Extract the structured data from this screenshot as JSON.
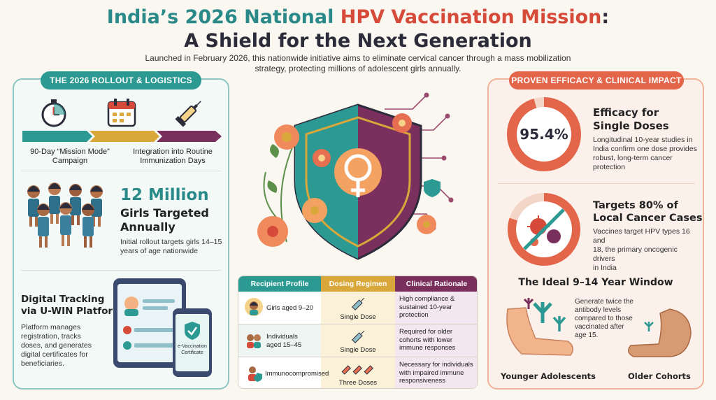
{
  "header": {
    "title_part1": "India’s 2026 National ",
    "title_part2": "HPV Vaccination Mission",
    "title_part3": ":",
    "title_line2": "A Shield for the Next Generation",
    "subtitle": "Launched in February 2026, this nationwide initiative aims to eliminate cervical cancer through a mass mobilization strategy, protecting millions of adolescent girls annually."
  },
  "left_panel": {
    "pill": "THE 2026 ROLLOUT & LOGISTICS",
    "icons": [
      "stopwatch-icon",
      "calendar-icon",
      "syringe-icon"
    ],
    "captions": {
      "c1_line1": "90-Day “Mission Mode”",
      "c1_line2": "Campaign",
      "c2_line1": "Integration into Routine",
      "c2_line2": "Immunization Days"
    },
    "girls": {
      "number": "12 Million",
      "heading_line1": "Girls Targeted",
      "heading_line2": "Annually",
      "body_line1": "Initial rollout targets girls 14–15",
      "body_line2": "years of age nationwide"
    },
    "tracking": {
      "heading_line1": "Digital Tracking",
      "heading_line2": "via U-WIN Platform",
      "body_line1": "Platform manages",
      "body_line2": "registration, tracks",
      "body_line3": "doses, and generates",
      "body_line4": "digital certificates for",
      "body_line5": "beneficiaries.",
      "phone_line1": "e-Vaccination",
      "phone_line2": "Certificate"
    }
  },
  "table": {
    "headers": [
      "Recipient Profile",
      "Dosing Regimen",
      "Clinical Rationale"
    ],
    "rows": [
      {
        "profile_l1": "Girls aged 9–20",
        "profile_l2": "",
        "dose": "Single Dose",
        "rat_l1": "High compliance &",
        "rat_l2": "sustained 10-year",
        "rat_l3": "protection"
      },
      {
        "profile_l1": "Individuals",
        "profile_l2": "aged 15–45",
        "dose": "Single Dose",
        "rat_l1": "Required for older",
        "rat_l2": "cohorts with lower",
        "rat_l3": "immune responses"
      },
      {
        "profile_l1": "Immunocompromised",
        "profile_l2": "",
        "dose": "Three Doses",
        "rat_l1": "Necessary for individuals",
        "rat_l2": "with impaired immune",
        "rat_l3": "responsiveness"
      }
    ]
  },
  "right_panel": {
    "pill": "PROVEN EFFICACY & CLINICAL IMPACT",
    "efficacy": {
      "value": "95.4%",
      "gauge_fraction": 0.954,
      "heading_line1": "Efficacy for",
      "heading_line2": "Single Doses",
      "body_line1": "Longitudinal 10-year studies in",
      "body_line2": "India confirm one dose provides",
      "body_line3": "robust, long-term cancer",
      "body_line4": "protection"
    },
    "cases": {
      "heading_line1": "Targets 80% of",
      "heading_line2": "Local Cancer Cases",
      "gauge_fraction": 0.8,
      "body_line1": "Vaccines target HPV types 16 and",
      "body_line2": "18, the primary oncogenic drivers",
      "body_line3": "in India"
    },
    "window": {
      "heading": "The Ideal 9–14 Year Window",
      "body_line1": "Generate twice the",
      "body_line2": "antibody levels",
      "body_line3": "compared to those",
      "body_line4": "vaccinated after",
      "body_line5": "age 15.",
      "label_young": "Younger Adolescents",
      "label_old": "Older Cohorts"
    }
  },
  "colors": {
    "teal": "#2a8a8a",
    "coral": "#e3664a",
    "gold": "#d9a73a",
    "plum": "#7a2f5c"
  }
}
